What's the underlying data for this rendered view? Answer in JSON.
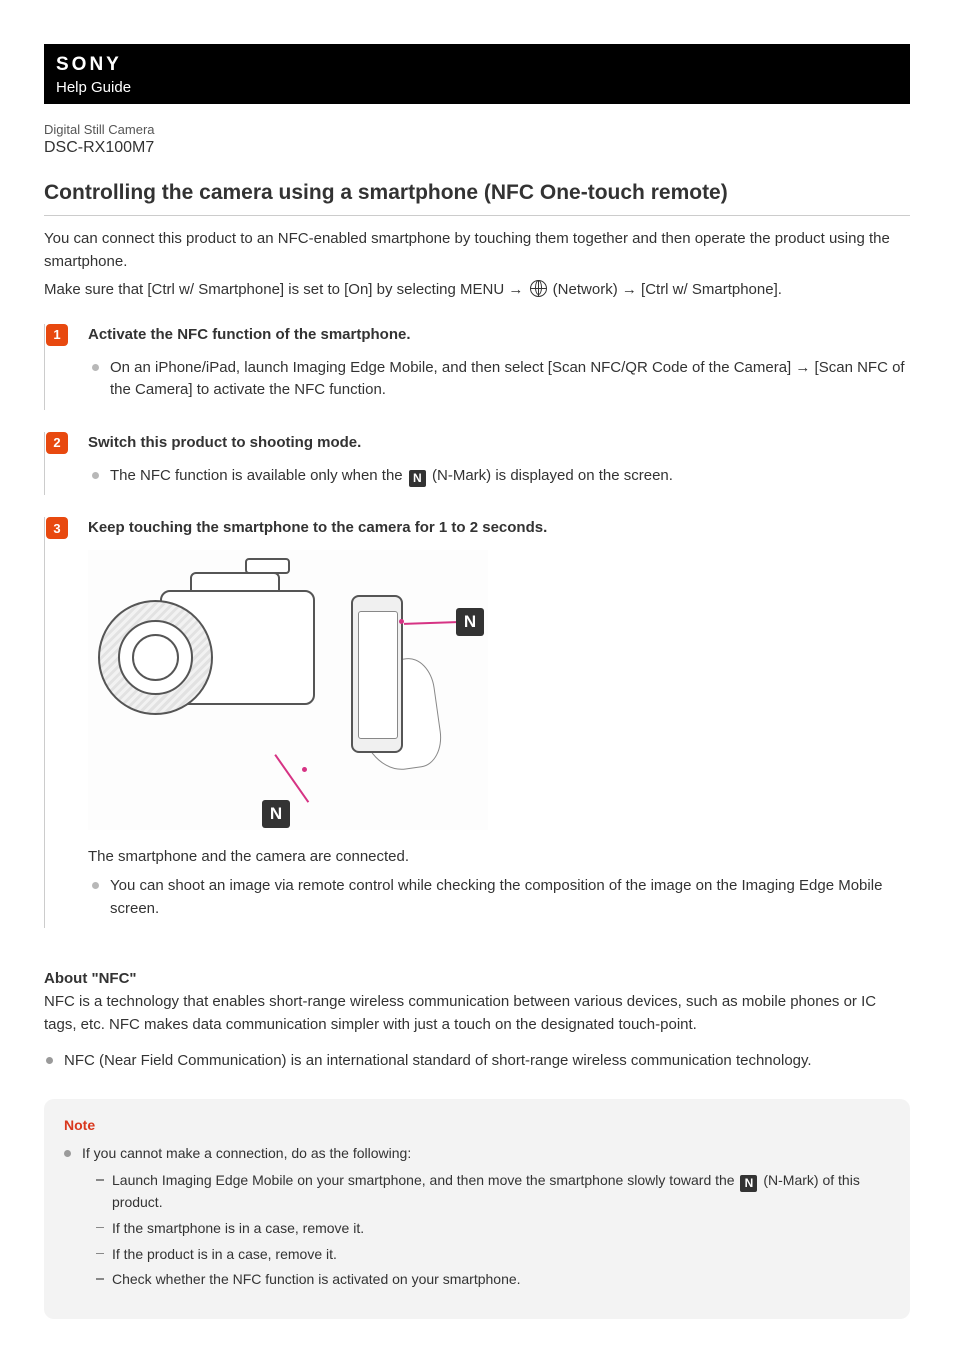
{
  "header": {
    "logo": "SONY",
    "subtitle": "Help Guide",
    "category": "Digital Still Camera",
    "model": "DSC-RX100M7"
  },
  "title": "Controlling the camera using a smartphone (NFC One-touch remote)",
  "intro": {
    "p1": "You can connect this product to an NFC-enabled smartphone by touching them together and then operate the product using the smartphone.",
    "p2_pre": "Make sure that [Ctrl w/ Smartphone] is set to [On] by selecting MENU → ",
    "p2_post": " (Network) → [Ctrl w/ Smartphone]."
  },
  "steps": [
    {
      "num": "1",
      "title": "Activate the NFC function of the smartphone.",
      "bullets": [
        "On an iPhone/iPad, launch Imaging Edge Mobile, and then select [Scan NFC/QR Code of the Camera] → [Scan NFC of the Camera] to activate the NFC function."
      ]
    },
    {
      "num": "2",
      "title": "Switch this product to shooting mode.",
      "bullet_pre": "The NFC function is available only when the ",
      "bullet_post": " (N-Mark) is displayed on the screen."
    },
    {
      "num": "3",
      "title": "Keep touching the smartphone to the camera for 1 to 2 seconds.",
      "connected": "The smartphone and the camera are connected.",
      "bullets": [
        "You can shoot an image via remote control while checking the composition of the image on the Imaging Edge Mobile screen."
      ]
    }
  ],
  "about": {
    "heading": "About \"NFC\"",
    "text": "NFC is a technology that enables short-range wireless communication between various devices, such as mobile phones or IC tags, etc. NFC makes data communication simpler with just a touch on the designated touch-point.",
    "bullet": "NFC (Near Field Communication) is an international standard of short-range wireless communication technology."
  },
  "note": {
    "heading": "Note",
    "lead": "If you cannot make a connection, do as the following:",
    "sub1_pre": "Launch Imaging Edge Mobile on your smartphone, and then move the smartphone slowly toward the ",
    "sub1_post": " (N-Mark) of this product.",
    "sub2": "If the smartphone is in a case, remove it.",
    "sub3": "If the product is in a case, remove it.",
    "sub4": "Check whether the NFC function is activated on your smartphone."
  },
  "nmark_glyph": "N",
  "colors": {
    "accent": "#e8490f",
    "callout": "#d63384",
    "note_bg": "#f3f3f3",
    "note_heading": "#d9381e"
  }
}
